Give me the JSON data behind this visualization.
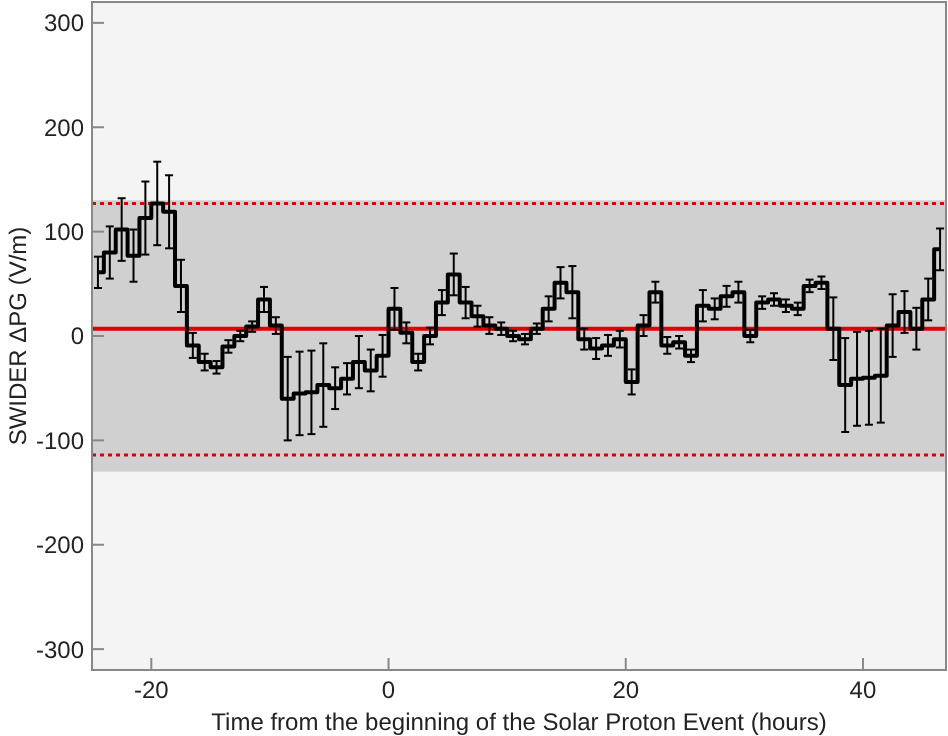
{
  "chart_data": {
    "type": "step",
    "xlabel": "Time from the beginning of the Solar Proton Event (hours)",
    "ylabel": "SWIDER ΔPG (V/m)",
    "x": [
      -24.5,
      -23.5,
      -22.5,
      -21.5,
      -20.5,
      -19.5,
      -18.5,
      -17.5,
      -16.5,
      -15.5,
      -14.5,
      -13.5,
      -12.5,
      -11.5,
      -10.5,
      -9.5,
      -8.5,
      -7.5,
      -6.5,
      -5.5,
      -4.5,
      -3.5,
      -2.5,
      -1.5,
      -0.5,
      0.5,
      1.5,
      2.5,
      3.5,
      4.5,
      5.5,
      6.5,
      7.5,
      8.5,
      9.5,
      10.5,
      11.5,
      12.5,
      13.5,
      14.5,
      15.5,
      16.5,
      17.5,
      18.5,
      19.5,
      20.5,
      21.5,
      22.5,
      23.5,
      24.5,
      25.5,
      26.5,
      27.5,
      28.5,
      29.5,
      30.5,
      31.5,
      32.5,
      33.5,
      34.5,
      35.5,
      36.5,
      37.5,
      38.5,
      39.5,
      40.5,
      41.5,
      42.5,
      43.5,
      44.5,
      45.5,
      46.5
    ],
    "series": [
      {
        "color": "#000000",
        "values": [
          61,
          80,
          102,
          77,
          113,
          127,
          119,
          48,
          -9,
          -25,
          -30,
          -10,
          0,
          9,
          35,
          10,
          -60,
          -55,
          -54,
          -47,
          -50,
          -41,
          -25,
          -33,
          -19,
          26,
          3,
          -25,
          0,
          32,
          59,
          32,
          19,
          10,
          7,
          0,
          -3,
          7,
          26,
          51,
          42,
          -3,
          -12,
          -9,
          -3,
          -44,
          10,
          42,
          -9,
          -6,
          -19,
          29,
          26,
          38,
          42,
          0,
          32,
          35,
          29,
          26,
          48,
          51,
          7,
          -47,
          -41,
          -40,
          -38,
          10,
          23,
          7,
          35,
          83
        ],
        "errors": [
          15,
          25,
          30,
          25,
          35,
          40,
          35,
          25,
          12,
          8,
          6,
          6,
          5,
          5,
          12,
          8,
          40,
          40,
          40,
          40,
          20,
          15,
          25,
          20,
          20,
          20,
          10,
          8,
          8,
          12,
          20,
          15,
          10,
          8,
          6,
          5,
          5,
          5,
          12,
          15,
          25,
          10,
          10,
          10,
          8,
          12,
          10,
          10,
          8,
          6,
          6,
          15,
          10,
          10,
          10,
          6,
          6,
          6,
          6,
          6,
          6,
          6,
          30,
          45,
          45,
          45,
          45,
          30,
          20,
          20,
          20,
          20
        ]
      }
    ],
    "ylim": [
      -320,
      320
    ],
    "yticks": [
      -300,
      -200,
      -100,
      0,
      100,
      200,
      300
    ],
    "xlim": [
      -25,
      47
    ],
    "xticks": [
      -20,
      0,
      20,
      40
    ],
    "ref_lines": [
      {
        "axis": "y",
        "value": 7,
        "color": "#e00000",
        "line_style": "solid"
      },
      {
        "axis": "y",
        "value": 127,
        "color": "#e00000",
        "line_style": "dotted"
      },
      {
        "axis": "y",
        "value": -114,
        "color": "#e00000",
        "line_style": "dotted"
      }
    ],
    "bands": [
      {
        "axis": "y",
        "from": -130,
        "to": 130,
        "color": "#d0d0d0"
      }
    ]
  }
}
